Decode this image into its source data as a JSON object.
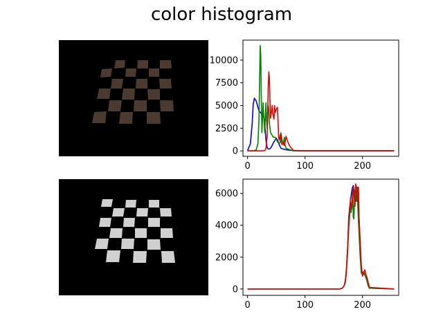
{
  "title": "color histogram",
  "images": [
    {
      "name": "checkerboard-dark-photo",
      "tone": "#4a3a30"
    },
    {
      "name": "checkerboard-equalized-photo",
      "tone": "#d0d0d0"
    }
  ],
  "colors": {
    "blue": "#0000cc",
    "green": "#008000",
    "red": "#e00000"
  },
  "chart_data": [
    {
      "type": "line",
      "title": "",
      "xlabel": "",
      "ylabel": "",
      "xlim": [
        -8,
        263
      ],
      "ylim": [
        -600,
        12200
      ],
      "xticks": [
        0,
        100,
        200
      ],
      "yticks": [
        0,
        2500,
        5000,
        7500,
        10000
      ],
      "series": [
        {
          "color": "blue",
          "x": [
            0,
            5,
            8,
            10,
            12,
            15,
            18,
            20,
            23,
            25,
            28,
            30,
            32,
            34,
            36,
            38,
            40,
            42,
            45,
            48,
            50,
            52,
            55,
            58,
            62,
            65,
            70,
            80,
            100,
            150,
            200,
            255
          ],
          "y": [
            0,
            800,
            3000,
            5200,
            5800,
            5500,
            4800,
            4400,
            4200,
            4000,
            3800,
            3000,
            1200,
            400,
            200,
            200,
            300,
            500,
            900,
            1200,
            1400,
            1200,
            700,
            300,
            200,
            150,
            100,
            20,
            0,
            0,
            0,
            0
          ]
        },
        {
          "color": "green",
          "x": [
            0,
            10,
            15,
            18,
            20,
            21,
            22,
            23,
            24,
            25,
            26,
            27,
            28,
            30,
            31,
            32,
            33,
            34,
            35,
            36,
            37,
            38,
            40,
            42,
            45,
            48,
            50,
            52,
            55,
            57,
            58,
            60,
            62,
            64,
            65,
            67,
            70,
            75,
            80,
            100,
            150,
            255
          ],
          "y": [
            0,
            0,
            100,
            800,
            3500,
            8000,
            11600,
            10500,
            5500,
            2000,
            3500,
            5300,
            4000,
            2000,
            4000,
            5300,
            3500,
            2500,
            3500,
            5000,
            4500,
            3000,
            2000,
            1800,
            1500,
            1500,
            1300,
            1000,
            800,
            1000,
            2000,
            1200,
            700,
            1500,
            700,
            300,
            200,
            100,
            0,
            0,
            0,
            0
          ]
        },
        {
          "color": "red",
          "x": [
            0,
            20,
            28,
            30,
            32,
            34,
            36,
            37,
            38,
            39,
            40,
            42,
            43,
            44,
            46,
            47,
            48,
            50,
            52,
            53,
            54,
            55,
            57,
            58,
            59,
            60,
            62,
            64,
            65,
            66,
            67,
            68,
            70,
            72,
            75,
            80,
            100,
            200,
            255
          ],
          "y": [
            0,
            0,
            0,
            50,
            200,
            1500,
            7000,
            8700,
            8000,
            5500,
            3600,
            4500,
            5000,
            4000,
            3500,
            5000,
            4200,
            4600,
            4800,
            3500,
            1500,
            1200,
            1800,
            1400,
            800,
            700,
            900,
            600,
            800,
            1200,
            1600,
            1400,
            1000,
            700,
            400,
            50,
            0,
            0,
            0
          ]
        }
      ]
    },
    {
      "type": "line",
      "title": "",
      "xlabel": "",
      "ylabel": "",
      "xlim": [
        -8,
        263
      ],
      "ylim": [
        -400,
        6900
      ],
      "xticks": [
        0,
        100,
        200
      ],
      "yticks": [
        0,
        2000,
        4000,
        6000
      ],
      "series": [
        {
          "color": "blue",
          "x": [
            0,
            160,
            165,
            168,
            170,
            172,
            174,
            176,
            178,
            180,
            182,
            184,
            186,
            188,
            190,
            192,
            194,
            196,
            198,
            200,
            202,
            204,
            206,
            208,
            210,
            212,
            255
          ],
          "y": [
            0,
            0,
            50,
            200,
            500,
            1200,
            2500,
            4500,
            5200,
            5800,
            6300,
            6500,
            6000,
            5500,
            6200,
            5800,
            4500,
            2500,
            1200,
            1000,
            1000,
            900,
            800,
            500,
            200,
            50,
            0
          ]
        },
        {
          "color": "green",
          "x": [
            0,
            160,
            165,
            168,
            170,
            172,
            174,
            176,
            177,
            178,
            180,
            182,
            183,
            184,
            185,
            186,
            188,
            190,
            191,
            192,
            194,
            196,
            198,
            200,
            202,
            204,
            206,
            208,
            210,
            212,
            255
          ],
          "y": [
            0,
            0,
            50,
            200,
            500,
            1200,
            2500,
            4200,
            4800,
            5000,
            4800,
            5200,
            6300,
            4500,
            4400,
            5500,
            6500,
            5500,
            6400,
            5000,
            3500,
            2000,
            1000,
            900,
            1100,
            900,
            700,
            500,
            200,
            50,
            0
          ]
        },
        {
          "color": "red",
          "x": [
            0,
            160,
            165,
            168,
            170,
            172,
            174,
            176,
            178,
            179,
            180,
            182,
            184,
            186,
            187,
            188,
            190,
            192,
            193,
            194,
            196,
            198,
            200,
            202,
            204,
            206,
            208,
            210,
            212,
            255
          ],
          "y": [
            0,
            0,
            50,
            200,
            400,
            1000,
            2200,
            3800,
            4800,
            5700,
            5000,
            5500,
            6400,
            5500,
            5200,
            6600,
            6300,
            5500,
            6400,
            4500,
            3000,
            1500,
            800,
            1000,
            1200,
            900,
            700,
            400,
            100,
            0
          ]
        }
      ]
    }
  ]
}
